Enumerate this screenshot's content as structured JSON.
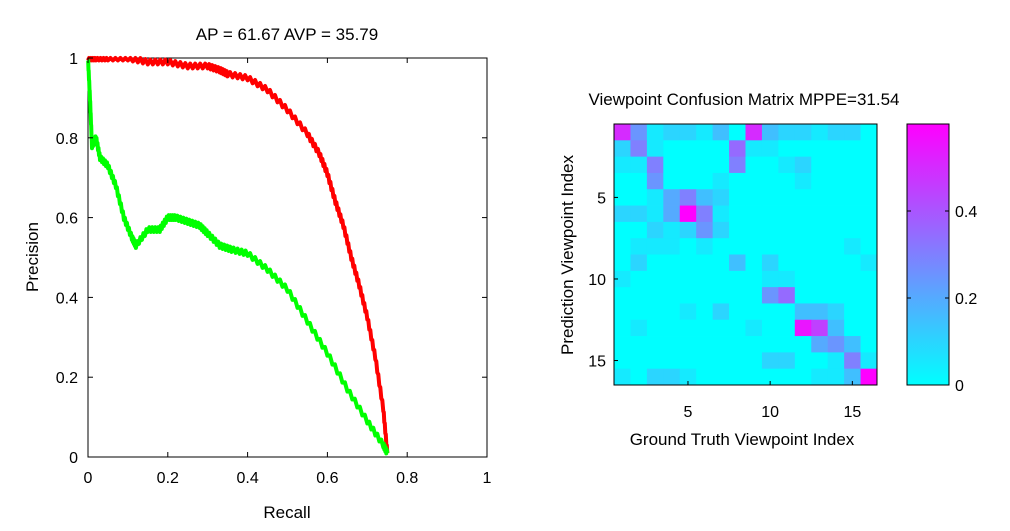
{
  "chart_data": [
    {
      "type": "line",
      "title": "AP = 61.67 AVP = 35.79",
      "xlabel": "Recall",
      "ylabel": "Precision",
      "xlim": [
        0,
        1
      ],
      "ylim": [
        0,
        1
      ],
      "xticks": [
        "0",
        "0.2",
        "0.4",
        "0.6",
        "0.8",
        "1"
      ],
      "yticks": [
        "0",
        "0.2",
        "0.4",
        "0.6",
        "0.8",
        "1"
      ],
      "grid": false,
      "colors": {
        "ap": "#ff0000",
        "avp": "#00ff00"
      },
      "series": [
        {
          "color": "#ff0000",
          "x": [
            0,
            0.02,
            0.05,
            0.1,
            0.15,
            0.2,
            0.25,
            0.3,
            0.33,
            0.35,
            0.4,
            0.45,
            0.5,
            0.55,
            0.58,
            0.6,
            0.62,
            0.64,
            0.66,
            0.68,
            0.7,
            0.72,
            0.74,
            0.75
          ],
          "y": [
            1.0,
            1.0,
            1.0,
            1.0,
            0.99,
            0.99,
            0.98,
            0.98,
            0.97,
            0.96,
            0.95,
            0.92,
            0.87,
            0.81,
            0.76,
            0.71,
            0.64,
            0.58,
            0.5,
            0.43,
            0.35,
            0.25,
            0.12,
            0.01
          ]
        },
        {
          "color": "#00ff00",
          "x": [
            0,
            0.005,
            0.01,
            0.02,
            0.03,
            0.05,
            0.07,
            0.09,
            0.11,
            0.12,
            0.15,
            0.18,
            0.2,
            0.22,
            0.25,
            0.28,
            0.3,
            0.33,
            0.36,
            0.4,
            0.45,
            0.5,
            0.55,
            0.6,
            0.65,
            0.7,
            0.74,
            0.75
          ],
          "y": [
            1.0,
            0.9,
            0.78,
            0.8,
            0.75,
            0.73,
            0.68,
            0.6,
            0.55,
            0.53,
            0.57,
            0.57,
            0.6,
            0.6,
            0.59,
            0.58,
            0.56,
            0.53,
            0.52,
            0.51,
            0.47,
            0.42,
            0.34,
            0.26,
            0.17,
            0.09,
            0.03,
            0.01
          ]
        }
      ]
    },
    {
      "type": "heatmap",
      "title": "Viewpoint Confusion Matrix MPPE=31.54",
      "xlabel": "Ground Truth Viewpoint Index",
      "ylabel": "Prediction Viewpoint Index",
      "xticks": [
        "5",
        "10",
        "15"
      ],
      "yticks": [
        "5",
        "10",
        "15"
      ],
      "colorbar": {
        "ticks": [
          "0",
          "0.2",
          "0.4"
        ],
        "range": [
          0,
          0.6
        ],
        "low_color": "#00ffff",
        "high_color": "#ff00ff"
      },
      "rows": 16,
      "cols": 16,
      "matrix": [
        [
          0.5,
          0.25,
          0.05,
          0.1,
          0.1,
          0.05,
          0.15,
          0.0,
          0.5,
          0.15,
          0.1,
          0.1,
          0.05,
          0.1,
          0.1,
          0.0
        ],
        [
          0.1,
          0.3,
          0.05,
          0.0,
          0.0,
          0.0,
          0.0,
          0.35,
          0.05,
          0.05,
          0.0,
          0.0,
          0.0,
          0.0,
          0.0,
          0.0
        ],
        [
          0.05,
          0.05,
          0.3,
          0.0,
          0.0,
          0.0,
          0.0,
          0.3,
          0.0,
          0.0,
          0.05,
          0.1,
          0.0,
          0.0,
          0.0,
          0.0
        ],
        [
          0.0,
          0.0,
          0.25,
          0.0,
          0.0,
          0.0,
          0.05,
          0.0,
          0.0,
          0.0,
          0.0,
          0.05,
          0.0,
          0.0,
          0.0,
          0.0
        ],
        [
          0.0,
          0.0,
          0.05,
          0.2,
          0.3,
          0.15,
          0.1,
          0.0,
          0.0,
          0.0,
          0.0,
          0.0,
          0.0,
          0.0,
          0.0,
          0.0
        ],
        [
          0.1,
          0.1,
          0.05,
          0.2,
          0.6,
          0.3,
          0.05,
          0.0,
          0.0,
          0.0,
          0.0,
          0.0,
          0.0,
          0.0,
          0.0,
          0.0
        ],
        [
          0.0,
          0.0,
          0.1,
          0.05,
          0.1,
          0.25,
          0.1,
          0.0,
          0.0,
          0.0,
          0.0,
          0.0,
          0.0,
          0.0,
          0.0,
          0.0
        ],
        [
          0.0,
          0.05,
          0.05,
          0.05,
          0.0,
          0.05,
          0.0,
          0.0,
          0.0,
          0.0,
          0.0,
          0.0,
          0.0,
          0.0,
          0.05,
          0.0
        ],
        [
          0.0,
          0.1,
          0.0,
          0.0,
          0.0,
          0.0,
          0.0,
          0.15,
          0.0,
          0.1,
          0.0,
          0.0,
          0.0,
          0.0,
          0.0,
          0.05
        ],
        [
          0.05,
          0.0,
          0.0,
          0.0,
          0.0,
          0.0,
          0.0,
          0.0,
          0.0,
          0.05,
          0.05,
          0.0,
          0.0,
          0.0,
          0.0,
          0.0
        ],
        [
          0.0,
          0.0,
          0.0,
          0.0,
          0.0,
          0.0,
          0.0,
          0.0,
          0.0,
          0.25,
          0.35,
          0.0,
          0.0,
          0.0,
          0.0,
          0.0
        ],
        [
          0.0,
          0.0,
          0.0,
          0.0,
          0.05,
          0.0,
          0.1,
          0.0,
          0.0,
          0.0,
          0.0,
          0.15,
          0.15,
          0.1,
          0.0,
          0.0
        ],
        [
          0.0,
          0.05,
          0.0,
          0.0,
          0.0,
          0.0,
          0.0,
          0.0,
          0.05,
          0.0,
          0.0,
          0.55,
          0.45,
          0.15,
          0.0,
          0.0
        ],
        [
          0.0,
          0.0,
          0.0,
          0.0,
          0.0,
          0.0,
          0.0,
          0.0,
          0.0,
          0.0,
          0.0,
          0.0,
          0.2,
          0.25,
          0.15,
          0.0
        ],
        [
          0.0,
          0.0,
          0.0,
          0.0,
          0.0,
          0.0,
          0.0,
          0.0,
          0.0,
          0.1,
          0.1,
          0.0,
          0.0,
          0.05,
          0.3,
          0.05
        ],
        [
          0.05,
          0.0,
          0.1,
          0.1,
          0.05,
          0.0,
          0.0,
          0.0,
          0.0,
          0.0,
          0.0,
          0.0,
          0.05,
          0.05,
          0.15,
          0.6
        ]
      ]
    }
  ]
}
